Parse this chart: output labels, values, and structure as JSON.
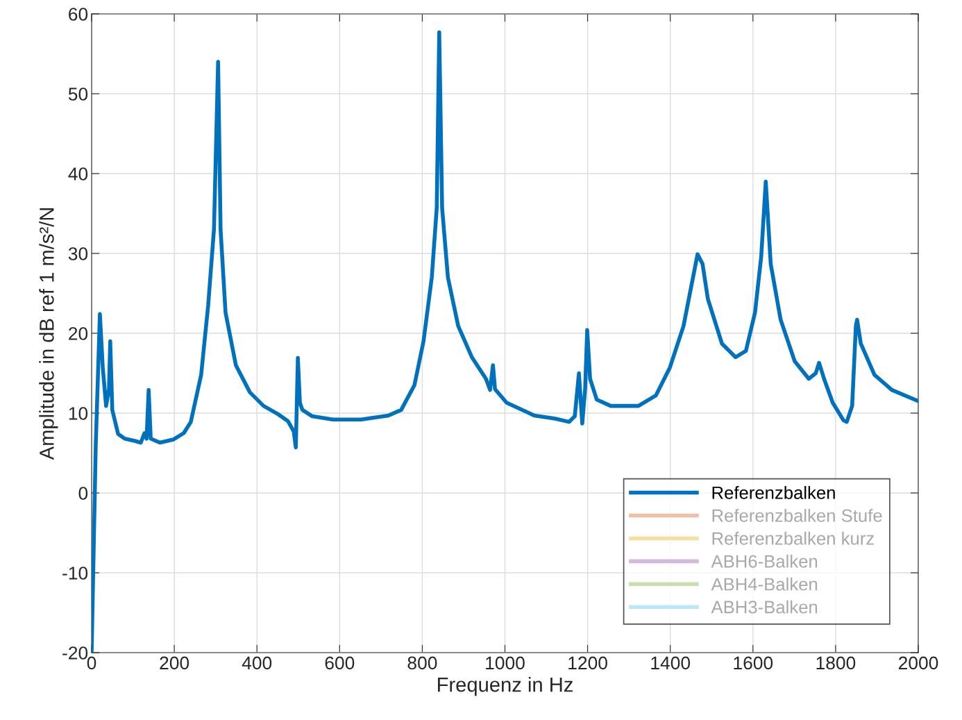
{
  "chart_data": {
    "type": "line",
    "xlabel": "Frequenz in Hz",
    "ylabel": "Amplitude in dB ref 1 m/s²/N",
    "xlim": [
      0,
      2000
    ],
    "xticks": [
      0,
      200,
      400,
      600,
      800,
      1000,
      1200,
      1400,
      1600,
      1800,
      2000
    ],
    "ylim": [
      -20,
      60
    ],
    "yticks": [
      -20,
      -10,
      0,
      10,
      20,
      30,
      40,
      50,
      60
    ],
    "grid": true,
    "legend": "bottom right",
    "line_style": "solid",
    "x": [
      0,
      10,
      20,
      27,
      35,
      42,
      45,
      50,
      64,
      80,
      106,
      119,
      128,
      133,
      138,
      143,
      165,
      198,
      223,
      240,
      265,
      282,
      296,
      306,
      312,
      324,
      349,
      383,
      416,
      450,
      475,
      489,
      494,
      499,
      504,
      510,
      534,
      584,
      652,
      718,
      749,
      781,
      803,
      823,
      835,
      841,
      848,
      862,
      887,
      920,
      954,
      964,
      971,
      976,
      1004,
      1071,
      1122,
      1155,
      1169,
      1179,
      1187,
      1194,
      1199,
      1206,
      1222,
      1256,
      1323,
      1365,
      1399,
      1432,
      1466,
      1478,
      1491,
      1525,
      1558,
      1583,
      1605,
      1620,
      1631,
      1643,
      1667,
      1701,
      1735,
      1752,
      1760,
      1772,
      1793,
      1819,
      1827,
      1840,
      1849,
      1852,
      1861,
      1894,
      1936,
      2000
    ],
    "series": [
      {
        "name": "Referenzbalken",
        "color": "#0072bd",
        "values": [
          -20,
          6,
          22.4,
          15.7,
          10.9,
          13,
          19,
          10.4,
          7.4,
          6.8,
          6.5,
          6.3,
          7.5,
          6.8,
          12.9,
          6.8,
          6.3,
          6.7,
          7.5,
          8.9,
          14.8,
          23.5,
          33,
          54,
          33,
          22.6,
          16,
          12.6,
          10.9,
          9.9,
          9,
          7.7,
          5.7,
          16.9,
          11.3,
          10.4,
          9.6,
          9.2,
          9.2,
          9.7,
          10.4,
          13.5,
          19,
          27,
          35.7,
          57.7,
          35.7,
          27,
          20.9,
          17,
          14.3,
          12.9,
          16,
          13,
          11.3,
          9.7,
          9.3,
          8.9,
          9.6,
          15,
          8.7,
          13,
          20.4,
          14.3,
          11.7,
          10.9,
          10.9,
          12.2,
          15.7,
          20.9,
          29.9,
          28.7,
          24.3,
          18.7,
          17,
          17.8,
          22.6,
          29.6,
          39,
          28.7,
          21.7,
          16.5,
          14.3,
          15,
          16.3,
          14.3,
          11.3,
          9.1,
          8.9,
          10.9,
          20.9,
          21.7,
          18.7,
          14.8,
          12.9,
          11.5
        ]
      },
      {
        "name": "Referenzbalken Stufe",
        "color": "#f0bfa8",
        "values": [
          null,
          null,
          null,
          null,
          null,
          null,
          null,
          null,
          null,
          null,
          null,
          null,
          null,
          null,
          null,
          null,
          null,
          null,
          null,
          null,
          null,
          null,
          null,
          null,
          null,
          null,
          null,
          null,
          null,
          null,
          null,
          null,
          null,
          null,
          null,
          null,
          null,
          null,
          null,
          null,
          null,
          null,
          null,
          null,
          null,
          null,
          null,
          null,
          null,
          null,
          null,
          null,
          null,
          null,
          null,
          null,
          null,
          null,
          null,
          null,
          null,
          null,
          null,
          null,
          null,
          null,
          null,
          null,
          null,
          null,
          null,
          null,
          null,
          null,
          null,
          null,
          null,
          null,
          null,
          null,
          null,
          null,
          null,
          null,
          null,
          null,
          null,
          null,
          null,
          null,
          null,
          null,
          null,
          null,
          null,
          null
        ]
      },
      {
        "name": "Referenzbalken kurz",
        "color": "#f7dfa2",
        "values": [
          null,
          null,
          null,
          null,
          null,
          null,
          null,
          null,
          null,
          null,
          null,
          null,
          null,
          null,
          null,
          null,
          null,
          null,
          null,
          null,
          null,
          null,
          null,
          null,
          null,
          null,
          null,
          null,
          null,
          null,
          null,
          null,
          null,
          null,
          null,
          null,
          null,
          null,
          null,
          null,
          null,
          null,
          null,
          null,
          null,
          null,
          null,
          null,
          null,
          null,
          null,
          null,
          null,
          null,
          null,
          null,
          null,
          null,
          null,
          null,
          null,
          null,
          null,
          null,
          null,
          null,
          null,
          null,
          null,
          null,
          null,
          null,
          null,
          null,
          null,
          null,
          null,
          null,
          null,
          null,
          null,
          null,
          null,
          null,
          null,
          null,
          null,
          null,
          null,
          null,
          null,
          null,
          null,
          null,
          null,
          null
        ]
      },
      {
        "name": "ABH6-Balken",
        "color": "#d5b8dc",
        "values": [
          null,
          null,
          null,
          null,
          null,
          null,
          null,
          null,
          null,
          null,
          null,
          null,
          null,
          null,
          null,
          null,
          null,
          null,
          null,
          null,
          null,
          null,
          null,
          null,
          null,
          null,
          null,
          null,
          null,
          null,
          null,
          null,
          null,
          null,
          null,
          null,
          null,
          null,
          null,
          null,
          null,
          null,
          null,
          null,
          null,
          null,
          null,
          null,
          null,
          null,
          null,
          null,
          null,
          null,
          null,
          null,
          null,
          null,
          null,
          null,
          null,
          null,
          null,
          null,
          null,
          null,
          null,
          null,
          null,
          null,
          null,
          null,
          null,
          null,
          null,
          null,
          null,
          null,
          null,
          null,
          null,
          null,
          null,
          null,
          null,
          null,
          null,
          null,
          null,
          null,
          null,
          null,
          null,
          null,
          null,
          null
        ]
      },
      {
        "name": "ABH4-Balken",
        "color": "#cadfb0",
        "values": [
          null,
          null,
          null,
          null,
          null,
          null,
          null,
          null,
          null,
          null,
          null,
          null,
          null,
          null,
          null,
          null,
          null,
          null,
          null,
          null,
          null,
          null,
          null,
          null,
          null,
          null,
          null,
          null,
          null,
          null,
          null,
          null,
          null,
          null,
          null,
          null,
          null,
          null,
          null,
          null,
          null,
          null,
          null,
          null,
          null,
          null,
          null,
          null,
          null,
          null,
          null,
          null,
          null,
          null,
          null,
          null,
          null,
          null,
          null,
          null,
          null,
          null,
          null,
          null,
          null,
          null,
          null,
          null,
          null,
          null,
          null,
          null,
          null,
          null,
          null,
          null,
          null,
          null,
          null,
          null,
          null,
          null,
          null,
          null,
          null,
          null,
          null,
          null,
          null,
          null,
          null,
          null,
          null,
          null,
          null,
          null
        ]
      },
      {
        "name": "ABH3-Balken",
        "color": "#bde6f8",
        "values": [
          null,
          null,
          null,
          null,
          null,
          null,
          null,
          null,
          null,
          null,
          null,
          null,
          null,
          null,
          null,
          null,
          null,
          null,
          null,
          null,
          null,
          null,
          null,
          null,
          null,
          null,
          null,
          null,
          null,
          null,
          null,
          null,
          null,
          null,
          null,
          null,
          null,
          null,
          null,
          null,
          null,
          null,
          null,
          null,
          null,
          null,
          null,
          null,
          null,
          null,
          null,
          null,
          null,
          null,
          null,
          null,
          null,
          null,
          null,
          null,
          null,
          null,
          null,
          null,
          null,
          null,
          null,
          null,
          null,
          null,
          null,
          null,
          null,
          null,
          null,
          null,
          null,
          null,
          null,
          null,
          null,
          null,
          null,
          null,
          null,
          null,
          null,
          null,
          null,
          null,
          null,
          null,
          null,
          null,
          null,
          null
        ]
      }
    ]
  }
}
